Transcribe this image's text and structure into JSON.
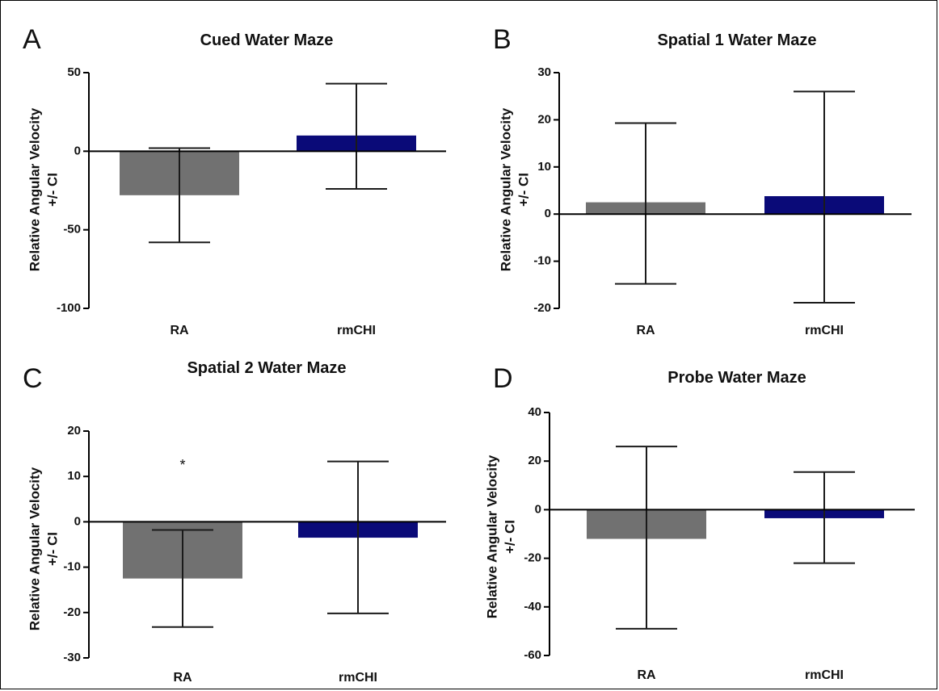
{
  "colors": {
    "RA": "#717171",
    "rmCHI": "#0a0a78",
    "axis": "#000000",
    "errorbar": "#1a1a1a"
  },
  "chart_data": [
    {
      "panel": "A",
      "type": "bar",
      "title": "Cued Water Maze",
      "ylabel_line1": "Relative Angular Velocity",
      "ylabel_line2": "+/- CI",
      "categories": [
        "RA",
        "rmCHI"
      ],
      "values": [
        -28,
        10
      ],
      "error_low": [
        -58,
        -24
      ],
      "error_high": [
        2,
        43
      ],
      "ylim": [
        -100,
        50
      ],
      "yticks": [
        -100,
        -50,
        0,
        50
      ],
      "ytick_labels": [
        "-100",
        "-50",
        "0",
        "50"
      ],
      "annotations": []
    },
    {
      "panel": "B",
      "type": "bar",
      "title": "Spatial 1 Water Maze",
      "ylabel_line1": "Relative Angular Velocity",
      "ylabel_line2": "+/- CI",
      "categories": [
        "RA",
        "rmCHI"
      ],
      "values": [
        2.5,
        3.8
      ],
      "error_low": [
        -14.8,
        -18.8
      ],
      "error_high": [
        19.3,
        26
      ],
      "ylim": [
        -20,
        30
      ],
      "yticks": [
        -20,
        -10,
        0,
        10,
        20,
        30
      ],
      "ytick_labels": [
        "-20",
        "-10",
        "0",
        "10",
        "20",
        "30"
      ],
      "annotations": []
    },
    {
      "panel": "C",
      "type": "bar",
      "title": "Spatial 2 Water Maze",
      "ylabel_line1": "Relative Angular Velocity",
      "ylabel_line2": "+/- CI",
      "categories": [
        "RA",
        "rmCHI"
      ],
      "values": [
        -12.5,
        -3.5
      ],
      "error_low": [
        -23.2,
        -20.2
      ],
      "error_high": [
        -1.8,
        13.3
      ],
      "ylim": [
        -30,
        20
      ],
      "yticks": [
        -30,
        -20,
        -10,
        0,
        10,
        20
      ],
      "ytick_labels": [
        "-30",
        "-20",
        "-10",
        "0",
        "10",
        "20"
      ],
      "annotations": [
        {
          "text": "*",
          "category": "RA",
          "y": 12.5
        }
      ]
    },
    {
      "panel": "D",
      "type": "bar",
      "title": "Probe Water Maze",
      "ylabel_line1": "Relative Angular Velocity",
      "ylabel_line2": "+/- CI",
      "categories": [
        "RA",
        "rmCHI"
      ],
      "values": [
        -12,
        -3.5
      ],
      "error_low": [
        -49,
        -22
      ],
      "error_high": [
        26,
        15.5
      ],
      "ylim": [
        -60,
        40
      ],
      "yticks": [
        -60,
        -40,
        -20,
        0,
        20,
        40
      ],
      "ytick_labels": [
        "-60",
        "-40",
        "-20",
        "0",
        "20",
        "40"
      ],
      "annotations": []
    }
  ]
}
